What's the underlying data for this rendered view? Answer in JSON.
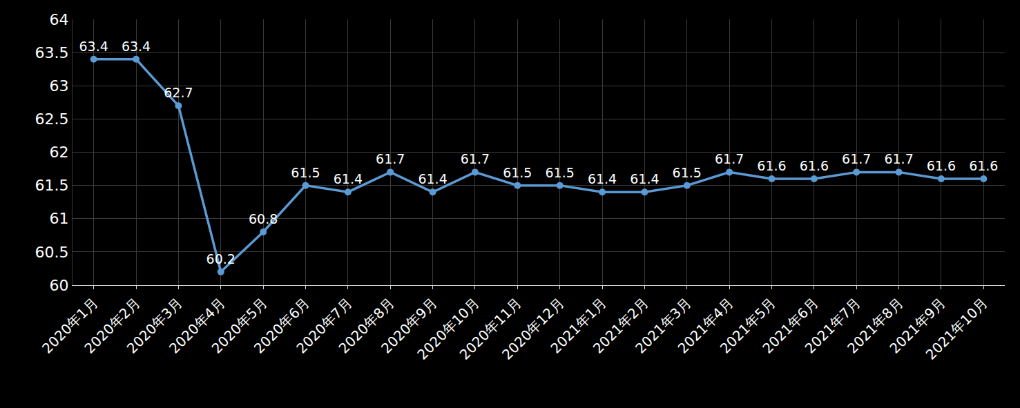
{
  "chart_data": {
    "type": "line",
    "categories": [
      "2020年1月",
      "2020年2月",
      "2020年3月",
      "2020年4月",
      "2020年5月",
      "2020年6月",
      "2020年7月",
      "2020年8月",
      "2020年9月",
      "2020年10月",
      "2020年11月",
      "2020年12月",
      "2021年1月",
      "2021年2月",
      "2021年3月",
      "2021年4月",
      "2021年5月",
      "2021年6月",
      "2021年7月",
      "2021年8月",
      "2021年9月",
      "2021年10月"
    ],
    "values": [
      63.4,
      63.4,
      62.7,
      60.2,
      60.8,
      61.5,
      61.4,
      61.7,
      61.4,
      61.7,
      61.5,
      61.5,
      61.4,
      61.4,
      61.5,
      61.7,
      61.6,
      61.6,
      61.7,
      61.7,
      61.6,
      61.6
    ],
    "color": "#5B9BD5",
    "ylim": [
      60,
      64
    ],
    "yticks": [
      60,
      60.5,
      61,
      61.5,
      62,
      62.5,
      63,
      63.5,
      64
    ],
    "grid": true,
    "data_labels": true,
    "marker": "circle"
  }
}
